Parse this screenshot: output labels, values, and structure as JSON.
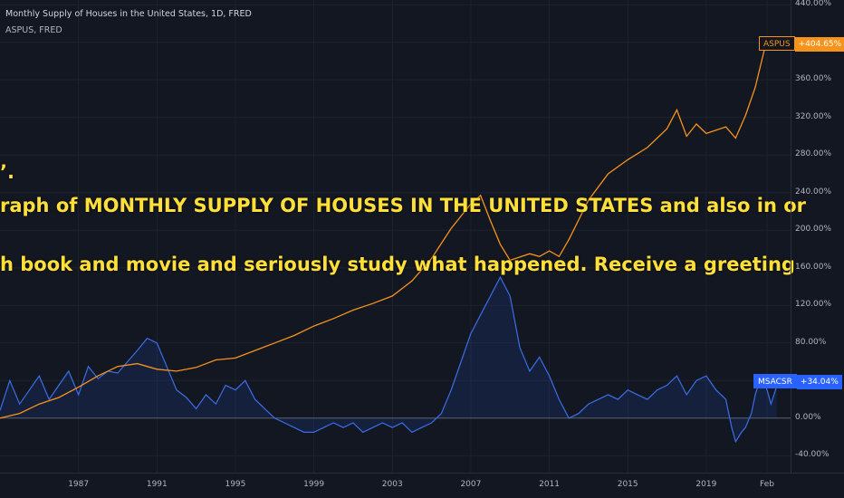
{
  "legend": {
    "title": "Monthly Supply of Houses in the United States, 1D, FRED",
    "subtitle": "ASPUS, FRED"
  },
  "overlay_text": {
    "line1": "’.",
    "line2": "raph of MONTHLY SUPPLY OF HOUSES IN THE UNITED STATES and also in or",
    "line3": "h book and movie and seriously study what happened. Receive a greeting"
  },
  "badges": {
    "aspus": {
      "name": "ASPUS",
      "value": "+404.65%",
      "color": "#f7931a"
    },
    "msacsr": {
      "name": "MSACSR",
      "value": "+34.04%",
      "color": "#2962ff"
    }
  },
  "colors": {
    "background": "#131722",
    "grid": "#1e222d",
    "aspus": "#f7931a",
    "msacsr": "#3a6ee8",
    "zero_line": "#5d606b"
  },
  "chart_data": {
    "type": "line",
    "title": "Monthly Supply of Houses in the United States, 1D, FRED",
    "y_unit": "%",
    "ylim": [
      -58,
      445
    ],
    "xlim": [
      1983.0,
      2023.3
    ],
    "y_ticks": [
      "440.00%",
      "400.00%",
      "360.00%",
      "320.00%",
      "280.00%",
      "240.00%",
      "200.00%",
      "160.00%",
      "120.00%",
      "80.00%",
      "40.00%",
      "0.00%",
      "-40.00%"
    ],
    "y_tick_values": [
      440,
      400,
      360,
      320,
      280,
      240,
      200,
      160,
      120,
      80,
      40,
      0,
      -40
    ],
    "x_ticks": [
      "1987",
      "1991",
      "1995",
      "1999",
      "2003",
      "2007",
      "2011",
      "2015",
      "2019",
      "Feb"
    ],
    "x_tick_values": [
      1987,
      1991,
      1995,
      1999,
      2003,
      2007,
      2011,
      2015,
      2019,
      2022.1
    ],
    "grid": true,
    "series": [
      {
        "name": "ASPUS",
        "x": [
          1983.0,
          1984.0,
          1985.0,
          1986.0,
          1987.0,
          1988.0,
          1989.0,
          1990.0,
          1991.0,
          1992.0,
          1993.0,
          1994.0,
          1995.0,
          1996.0,
          1997.0,
          1998.0,
          1999.0,
          2000.0,
          2001.0,
          2002.0,
          2003.0,
          2004.0,
          2005.0,
          2006.0,
          2007.0,
          2007.5,
          2008.0,
          2008.5,
          2009.0,
          2010.0,
          2010.5,
          2011.0,
          2011.5,
          2012.0,
          2013.0,
          2014.0,
          2015.0,
          2016.0,
          2017.0,
          2017.5,
          2018.0,
          2018.5,
          2019.0,
          2020.0,
          2020.5,
          2021.0,
          2021.5,
          2022.0,
          2022.4
        ],
        "values": [
          0,
          5,
          15,
          22,
          33,
          45,
          55,
          58,
          52,
          50,
          54,
          62,
          64,
          72,
          80,
          88,
          98,
          106,
          115,
          122,
          130,
          146,
          170,
          202,
          228,
          237,
          210,
          185,
          168,
          175,
          172,
          178,
          172,
          190,
          232,
          260,
          275,
          288,
          308,
          328,
          300,
          313,
          303,
          310,
          298,
          322,
          352,
          395,
          404.65
        ]
      },
      {
        "name": "MSACSR",
        "x": [
          1983.0,
          1983.5,
          1984.0,
          1984.5,
          1985.0,
          1985.5,
          1986.0,
          1986.5,
          1987.0,
          1987.5,
          1988.0,
          1988.5,
          1989.0,
          1989.5,
          1990.0,
          1990.5,
          1991.0,
          1991.5,
          1992.0,
          1992.5,
          1993.0,
          1993.5,
          1994.0,
          1994.5,
          1995.0,
          1995.5,
          1996.0,
          1996.5,
          1997.0,
          1997.5,
          1998.0,
          1998.5,
          1999.0,
          1999.5,
          2000.0,
          2000.5,
          2001.0,
          2001.5,
          2002.0,
          2002.5,
          2003.0,
          2003.5,
          2004.0,
          2004.5,
          2005.0,
          2005.5,
          2006.0,
          2006.5,
          2007.0,
          2007.5,
          2008.0,
          2008.5,
          2009.0,
          2009.5,
          2010.0,
          2010.5,
          2011.0,
          2011.5,
          2012.0,
          2012.5,
          2013.0,
          2013.5,
          2014.0,
          2014.5,
          2015.0,
          2015.5,
          2016.0,
          2016.5,
          2017.0,
          2017.5,
          2018.0,
          2018.5,
          2019.0,
          2019.5,
          2020.0,
          2020.3,
          2020.5,
          2020.8,
          2021.0,
          2021.3,
          2021.5,
          2021.8,
          2022.0,
          2022.3,
          2022.6
        ],
        "values": [
          8,
          40,
          15,
          30,
          45,
          20,
          35,
          50,
          25,
          55,
          42,
          50,
          48,
          60,
          72,
          85,
          80,
          55,
          30,
          22,
          10,
          25,
          15,
          35,
          30,
          40,
          20,
          10,
          0,
          -5,
          -10,
          -15,
          -15,
          -10,
          -5,
          -10,
          -5,
          -15,
          -10,
          -5,
          -10,
          -5,
          -15,
          -10,
          -5,
          5,
          30,
          60,
          90,
          110,
          130,
          150,
          130,
          75,
          50,
          65,
          45,
          20,
          0,
          5,
          15,
          20,
          25,
          20,
          30,
          25,
          20,
          30,
          35,
          45,
          25,
          40,
          45,
          30,
          20,
          -10,
          -25,
          -15,
          -10,
          5,
          25,
          45,
          38,
          15,
          34.04
        ]
      }
    ]
  }
}
